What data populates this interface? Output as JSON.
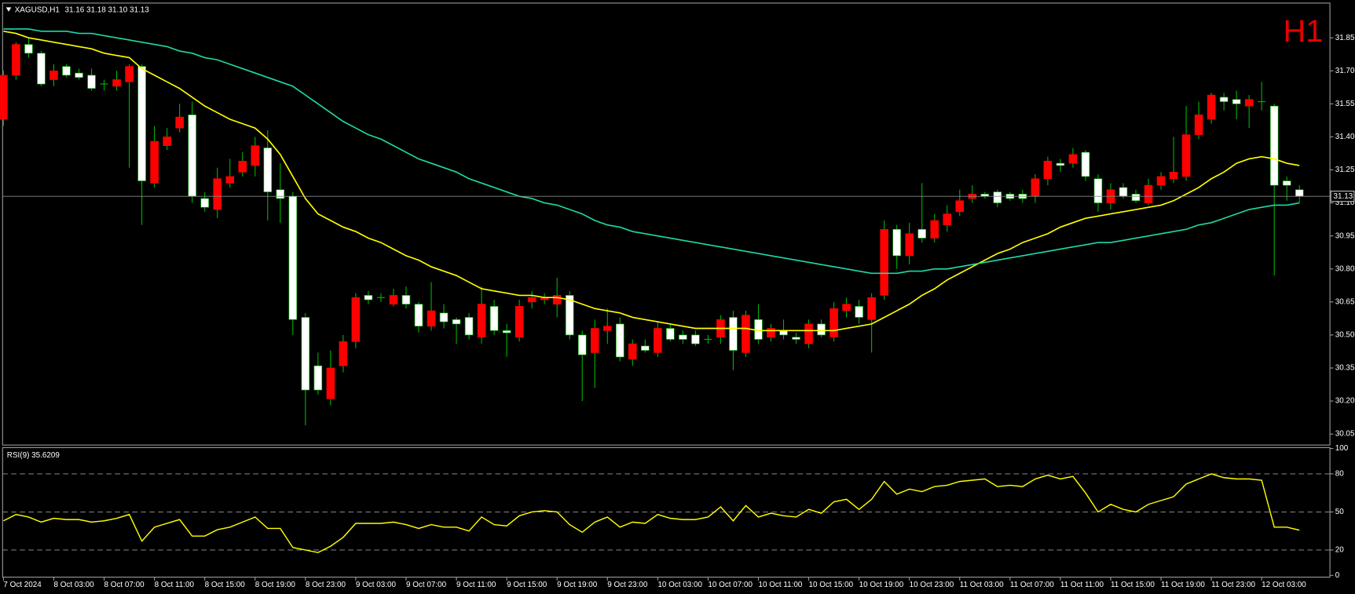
{
  "chart_data": [
    {
      "type": "candlestick",
      "title": "XAGUSD,H1",
      "subtitle": "31.16 31.18 31.10 31.13",
      "annotation": "H1",
      "categories": [
        "7 Oct 2024",
        null,
        null,
        null,
        "8 Oct 03:00",
        null,
        null,
        null,
        "8 Oct 07:00",
        null,
        null,
        null,
        "8 Oct 11:00",
        null,
        null,
        null,
        "8 Oct 15:00",
        null,
        null,
        null,
        "8 Oct 19:00",
        null,
        null,
        null,
        "8 Oct 23:00",
        null,
        null,
        null,
        "9 Oct 03:00",
        null,
        null,
        null,
        "9 Oct 07:00",
        null,
        null,
        null,
        "9 Oct 11:00",
        null,
        null,
        null,
        "9 Oct 15:00",
        null,
        null,
        null,
        "9 Oct 19:00",
        null,
        null,
        null,
        "9 Oct 23:00",
        null,
        null,
        null,
        "10 Oct 03:00",
        null,
        null,
        null,
        "10 Oct 07:00",
        null,
        null,
        null,
        "10 Oct 11:00",
        null,
        null,
        null,
        "10 Oct 15:00",
        null,
        null,
        null,
        "10 Oct 19:00",
        null,
        null,
        null,
        "10 Oct 23:00",
        null,
        null,
        null,
        "11 Oct 03:00",
        null,
        null,
        null,
        "11 Oct 07:00",
        null,
        null,
        null,
        "11 Oct 11:00",
        null,
        null,
        null,
        "11 Oct 15:00",
        null,
        null,
        null,
        "11 Oct 19:00",
        null,
        null,
        null,
        "11 Oct 23:00",
        null,
        null,
        null,
        "12 Oct 03:00",
        null,
        null,
        null
      ],
      "open": [
        31.48,
        31.68,
        31.82,
        31.78,
        31.66,
        31.72,
        31.69,
        31.68,
        31.64,
        31.63,
        31.65,
        31.72,
        31.19,
        31.36,
        31.44,
        31.5,
        31.12,
        31.07,
        31.19,
        31.24,
        31.27,
        31.35,
        31.16,
        31.13,
        30.58,
        30.36,
        30.21,
        30.36,
        30.47,
        30.68,
        30.67,
        30.64,
        30.68,
        30.64,
        30.54,
        30.6,
        30.57,
        30.58,
        30.49,
        30.63,
        30.52,
        30.49,
        30.65,
        30.66,
        30.64,
        30.68,
        30.5,
        30.42,
        30.52,
        30.55,
        30.39,
        30.45,
        30.42,
        30.53,
        30.5,
        30.5,
        30.48,
        30.49,
        30.58,
        30.42,
        30.57,
        30.49,
        30.52,
        30.49,
        30.46,
        30.55,
        30.49,
        30.61,
        30.63,
        30.57,
        30.68,
        30.98,
        30.86,
        30.98,
        30.94,
        31.0,
        31.06,
        31.12,
        31.14,
        31.15,
        31.14,
        31.14,
        31.13,
        31.21,
        31.28,
        31.28,
        31.33,
        31.21,
        31.1,
        31.17,
        31.14,
        31.1,
        31.18,
        31.21,
        31.22,
        31.41,
        31.48,
        31.58,
        31.57,
        31.54,
        31.56,
        31.54,
        31.2,
        31.16
      ],
      "high": [
        31.7,
        31.83,
        31.85,
        31.79,
        31.73,
        31.73,
        31.71,
        31.71,
        31.66,
        31.7,
        31.73,
        31.73,
        31.45,
        31.44,
        31.55,
        31.56,
        31.15,
        31.26,
        31.3,
        31.33,
        31.4,
        31.43,
        31.28,
        31.15,
        30.6,
        30.42,
        30.43,
        30.5,
        30.69,
        30.7,
        30.69,
        30.71,
        30.72,
        30.65,
        30.74,
        30.64,
        30.58,
        30.6,
        30.72,
        30.66,
        30.55,
        30.66,
        30.7,
        30.69,
        30.76,
        30.7,
        30.52,
        30.57,
        30.62,
        30.58,
        30.48,
        30.48,
        30.56,
        30.55,
        30.52,
        30.52,
        30.5,
        30.59,
        30.61,
        30.61,
        30.64,
        30.55,
        30.57,
        30.51,
        30.57,
        30.57,
        30.65,
        30.67,
        30.66,
        30.69,
        31.02,
        31.0,
        31.01,
        31.19,
        31.05,
        31.09,
        31.16,
        31.18,
        31.15,
        31.16,
        31.15,
        31.16,
        31.23,
        31.31,
        31.3,
        31.35,
        31.34,
        31.23,
        31.19,
        31.19,
        31.16,
        31.21,
        31.24,
        31.4,
        31.54,
        31.56,
        31.6,
        31.6,
        31.61,
        31.59,
        31.65,
        31.55,
        31.22,
        31.18
      ],
      "low": [
        31.45,
        31.66,
        31.76,
        31.63,
        31.63,
        31.67,
        31.66,
        31.61,
        31.61,
        31.61,
        31.26,
        31.0,
        31.17,
        31.34,
        31.42,
        31.1,
        31.06,
        31.03,
        31.17,
        31.22,
        31.22,
        31.02,
        31.01,
        30.5,
        30.09,
        30.23,
        30.18,
        30.33,
        30.44,
        30.64,
        30.65,
        30.63,
        30.62,
        30.51,
        30.52,
        30.53,
        30.46,
        30.48,
        30.46,
        30.5,
        30.4,
        30.47,
        30.62,
        30.64,
        30.58,
        30.48,
        30.2,
        30.26,
        30.46,
        30.38,
        30.36,
        30.42,
        30.4,
        30.47,
        30.46,
        30.45,
        30.46,
        30.46,
        30.34,
        30.4,
        30.46,
        30.47,
        30.48,
        30.46,
        30.44,
        30.49,
        30.47,
        30.58,
        30.55,
        30.42,
        30.66,
        30.8,
        30.82,
        30.92,
        30.92,
        30.97,
        31.04,
        31.1,
        31.12,
        31.08,
        31.11,
        31.1,
        31.1,
        31.18,
        31.24,
        31.26,
        31.2,
        31.06,
        31.07,
        31.12,
        31.1,
        31.09,
        31.16,
        31.19,
        31.2,
        31.39,
        31.46,
        31.52,
        31.48,
        31.44,
        31.52,
        30.77,
        31.11,
        31.1
      ],
      "close": [
        31.68,
        31.82,
        31.78,
        31.64,
        31.7,
        31.68,
        31.67,
        31.62,
        31.64,
        31.66,
        31.72,
        31.2,
        31.38,
        31.4,
        31.49,
        31.13,
        31.08,
        31.21,
        31.22,
        31.29,
        31.36,
        31.15,
        31.12,
        30.57,
        30.25,
        30.25,
        30.35,
        30.47,
        30.67,
        30.66,
        30.67,
        30.68,
        30.64,
        30.54,
        30.61,
        30.56,
        30.55,
        30.5,
        30.64,
        30.52,
        30.51,
        30.63,
        30.67,
        30.67,
        30.68,
        30.5,
        30.41,
        30.53,
        30.54,
        30.4,
        30.46,
        30.43,
        30.53,
        30.48,
        30.48,
        30.46,
        30.48,
        30.57,
        30.43,
        30.59,
        30.48,
        30.53,
        30.5,
        30.48,
        30.55,
        30.5,
        30.62,
        30.64,
        30.58,
        30.67,
        30.98,
        30.86,
        30.96,
        30.94,
        31.02,
        31.05,
        31.11,
        31.14,
        31.13,
        31.1,
        31.12,
        31.12,
        31.21,
        31.29,
        31.27,
        31.32,
        31.22,
        31.1,
        31.16,
        31.13,
        31.11,
        31.18,
        31.22,
        31.24,
        31.41,
        31.5,
        31.59,
        31.56,
        31.55,
        31.57,
        31.56,
        31.18,
        31.18,
        31.13
      ],
      "up_color": "#ff0000",
      "down_color": "#ffffff",
      "wick_color": "#00b400",
      "overlays": [
        {
          "color": "#ffff00",
          "values": [
            31.88,
            31.87,
            31.85,
            31.84,
            31.83,
            31.82,
            31.81,
            31.8,
            31.78,
            31.77,
            31.76,
            31.71,
            31.68,
            31.65,
            31.62,
            31.58,
            31.54,
            31.51,
            31.48,
            31.46,
            31.44,
            31.39,
            31.32,
            31.22,
            31.12,
            31.05,
            31.02,
            30.99,
            30.97,
            30.94,
            30.92,
            30.89,
            30.86,
            30.84,
            30.81,
            30.79,
            30.77,
            30.74,
            30.71,
            30.7,
            30.69,
            30.68,
            30.68,
            30.67,
            30.67,
            30.66,
            30.64,
            30.62,
            30.61,
            30.6,
            30.58,
            30.57,
            30.56,
            30.55,
            30.54,
            30.53,
            30.53,
            30.53,
            30.53,
            30.53,
            30.52,
            30.52,
            30.52,
            30.52,
            30.52,
            30.52,
            30.52,
            30.53,
            30.54,
            30.55,
            30.58,
            30.61,
            30.64,
            30.68,
            30.71,
            30.75,
            30.78,
            30.81,
            30.84,
            30.87,
            30.89,
            30.92,
            30.94,
            30.96,
            30.99,
            31.01,
            31.03,
            31.04,
            31.05,
            31.06,
            31.07,
            31.08,
            31.09,
            31.11,
            31.14,
            31.17,
            31.21,
            31.24,
            31.28,
            31.3,
            31.31,
            31.3,
            31.28,
            31.27
          ]
        },
        {
          "color": "#1fd8a6",
          "values": [
            31.89,
            31.89,
            31.89,
            31.88,
            31.88,
            31.88,
            31.87,
            31.87,
            31.86,
            31.85,
            31.84,
            31.83,
            31.82,
            31.81,
            31.79,
            31.78,
            31.76,
            31.75,
            31.73,
            31.71,
            31.69,
            31.67,
            31.65,
            31.63,
            31.59,
            31.55,
            31.51,
            31.47,
            31.44,
            31.41,
            31.39,
            31.36,
            31.33,
            31.3,
            31.28,
            31.26,
            31.24,
            31.21,
            31.19,
            31.17,
            31.15,
            31.13,
            31.12,
            31.1,
            31.09,
            31.07,
            31.05,
            31.02,
            31.0,
            30.99,
            30.97,
            30.96,
            30.95,
            30.94,
            30.93,
            30.92,
            30.91,
            30.9,
            30.89,
            30.88,
            30.87,
            30.86,
            30.85,
            30.84,
            30.83,
            30.82,
            30.81,
            30.8,
            30.79,
            30.78,
            30.78,
            30.78,
            30.79,
            30.79,
            30.8,
            30.8,
            30.81,
            30.82,
            30.83,
            30.84,
            30.85,
            30.86,
            30.87,
            30.88,
            30.89,
            30.9,
            30.91,
            30.92,
            30.92,
            30.93,
            30.94,
            30.95,
            30.96,
            30.97,
            30.98,
            31.0,
            31.01,
            31.03,
            31.05,
            31.07,
            31.08,
            31.09,
            31.09,
            31.1
          ]
        }
      ],
      "last_price": 31.13,
      "ylim": [
        30.0,
        32.0
      ],
      "yticks": [
        30.05,
        {
          "value": 30.2,
          "label": "30.20"
        },
        30.35,
        {
          "value": 30.5,
          "label": "30.50"
        },
        30.65,
        {
          "value": 30.8,
          "label": "30.80"
        },
        30.95,
        {
          "value": 31.1,
          "label": "31.10"
        },
        31.25,
        {
          "value": 31.4,
          "label": "31.40"
        },
        31.55,
        {
          "value": 31.7,
          "label": "31.70"
        },
        31.85
      ]
    },
    {
      "type": "line",
      "title": "RSI(9) 35.6209",
      "color": "#ffff00",
      "values": [
        43,
        48,
        46,
        42,
        45,
        44,
        44,
        42,
        43,
        45,
        48,
        27,
        38,
        41,
        44,
        31,
        31,
        36,
        38,
        42,
        46,
        37,
        37,
        22,
        20,
        18,
        23,
        30,
        41,
        41,
        41,
        42,
        40,
        37,
        40,
        38,
        38,
        35,
        46,
        40,
        39,
        47,
        50,
        51,
        50,
        40,
        34,
        42,
        46,
        38,
        42,
        41,
        48,
        45,
        44,
        44,
        46,
        54,
        43,
        55,
        46,
        49,
        47,
        46,
        52,
        49,
        58,
        60,
        52,
        60,
        74,
        64,
        68,
        66,
        70,
        71,
        74,
        75,
        76,
        70,
        71,
        70,
        76,
        79,
        76,
        78,
        65,
        50,
        56,
        52,
        50,
        56,
        59,
        62,
        72,
        76,
        80,
        77,
        76,
        76,
        75,
        38,
        38,
        35.6209
      ],
      "levels": [
        20,
        50,
        80
      ],
      "ylim": [
        0,
        100
      ],
      "yticks": [
        0,
        20,
        50,
        80,
        100
      ]
    }
  ]
}
